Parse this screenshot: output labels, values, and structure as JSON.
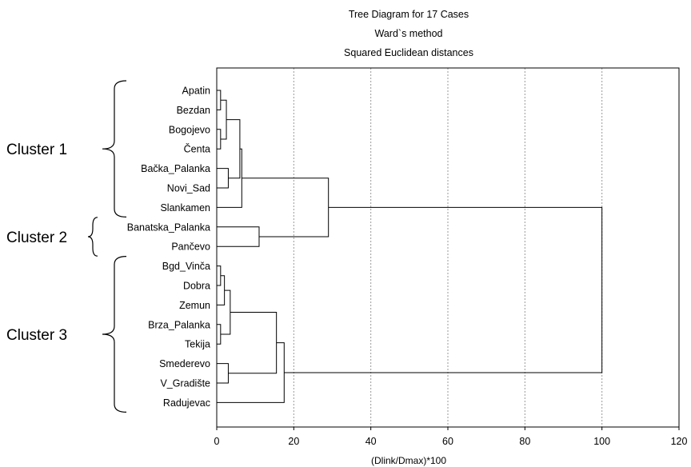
{
  "chart_data": {
    "type": "dendrogram",
    "title": [
      "Tree Diagram for 17 Cases",
      "Ward`s method",
      "Squared Euclidean distances"
    ],
    "xlabel": "(Dlink/Dmax)*100",
    "xlim": [
      0,
      120
    ],
    "xticks": [
      "0",
      "20",
      "40",
      "60",
      "80",
      "100",
      "120"
    ],
    "grid": "vertical dashed",
    "leaves": [
      "Apatin",
      "Bezdan",
      "Bogojevo",
      "Čenta",
      "Bačka_Palanka",
      "Novi_Sad",
      "Slankamen",
      "Banatska_Palanka",
      "Pančevo",
      "Bgd_Vinča",
      "Dobra",
      "Zemun",
      "Brza_Palanka",
      "Tekija",
      "Smederevo",
      "V_Gradište",
      "Radujevac"
    ],
    "merges": [
      {
        "a": 0,
        "b": 1,
        "height": 1.0
      },
      {
        "a": 2,
        "b": 3,
        "height": 1.0
      },
      {
        "a": 17,
        "b": 18,
        "height": 2.5
      },
      {
        "a": 4,
        "b": 5,
        "height": 3.0
      },
      {
        "a": 19,
        "b": 20,
        "height": 6.0
      },
      {
        "a": 21,
        "b": 6,
        "height": 6.5
      },
      {
        "a": 7,
        "b": 8,
        "height": 11.0
      },
      {
        "a": 22,
        "b": 23,
        "height": 29.0
      },
      {
        "a": 9,
        "b": 10,
        "height": 1.0
      },
      {
        "a": 25,
        "b": 11,
        "height": 2.0
      },
      {
        "a": 12,
        "b": 13,
        "height": 1.0
      },
      {
        "a": 26,
        "b": 27,
        "height": 3.5
      },
      {
        "a": 14,
        "b": 15,
        "height": 3.0
      },
      {
        "a": 28,
        "b": 29,
        "height": 15.5
      },
      {
        "a": 30,
        "b": 16,
        "height": 17.5
      },
      {
        "a": 24,
        "b": 31,
        "height": 100.0
      }
    ],
    "clusters": [
      {
        "label": "Cluster 1",
        "from": 0,
        "to": 6
      },
      {
        "label": "Cluster 2",
        "from": 7,
        "to": 8
      },
      {
        "label": "Cluster 3",
        "from": 9,
        "to": 16
      }
    ]
  }
}
